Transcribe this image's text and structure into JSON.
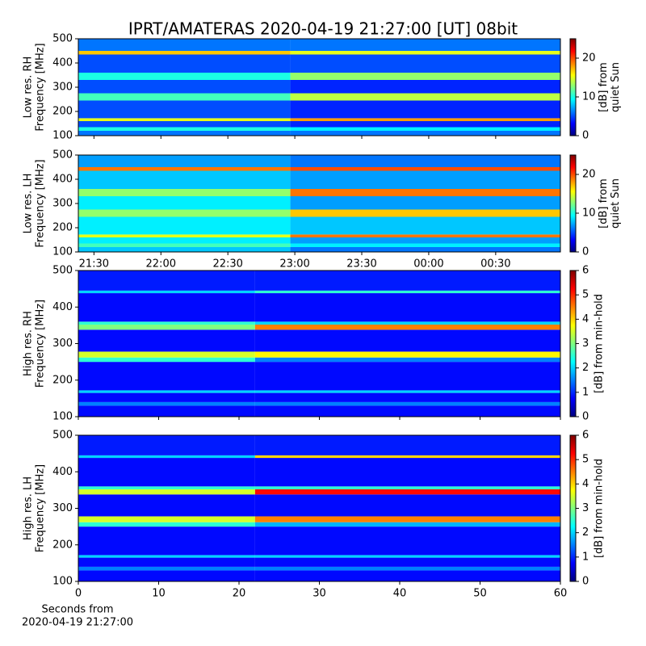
{
  "title": "IPRT/AMATERAS 2020-04-19 21:27:00 [UT]   08bit",
  "chart_data": [
    {
      "type": "heatmap",
      "ylabel": [
        "Low res. RH",
        "Frequency [MHz]"
      ],
      "colorbar_label": [
        "[dB] from",
        "quiet Sun"
      ],
      "xlim": [
        23,
        239
      ],
      "xticks": [
        {
          "value": 30,
          "label": "21:30"
        },
        {
          "value": 60,
          "label": "22:00"
        },
        {
          "value": 90,
          "label": "22:30"
        },
        {
          "value": 120,
          "label": "23:00"
        },
        {
          "value": 150,
          "label": "23:30"
        },
        {
          "value": 180,
          "label": "00:00"
        },
        {
          "value": 210,
          "label": "00:30"
        }
      ],
      "tick_labels": false,
      "ylim": [
        100,
        500
      ],
      "yticks": [
        100,
        200,
        300,
        400,
        500
      ],
      "clim": [
        0,
        25
      ],
      "cticks": [
        0,
        10,
        20
      ],
      "colormap": "jet",
      "x_edges": [
        23,
        118,
        239
      ],
      "y_edges": [
        100,
        120,
        135,
        160,
        172,
        245,
        275,
        330,
        360,
        435,
        450,
        500
      ],
      "z": [
        [
          6,
          6
        ],
        [
          10,
          9
        ],
        [
          5,
          4
        ],
        [
          15,
          18
        ],
        [
          5,
          4
        ],
        [
          11,
          14
        ],
        [
          5,
          4
        ],
        [
          10,
          13
        ],
        [
          5,
          5
        ],
        [
          17,
          15
        ],
        [
          6,
          6
        ]
      ]
    },
    {
      "type": "heatmap",
      "ylabel": [
        "Low res. LH",
        "Frequency [MHz]"
      ],
      "colorbar_label": [
        "[dB] from",
        "quiet Sun"
      ],
      "xlim": [
        23,
        239
      ],
      "xticks": [
        {
          "value": 30,
          "label": "21:30"
        },
        {
          "value": 60,
          "label": "22:00"
        },
        {
          "value": 90,
          "label": "22:30"
        },
        {
          "value": 120,
          "label": "23:00"
        },
        {
          "value": 150,
          "label": "23:30"
        },
        {
          "value": 180,
          "label": "00:00"
        },
        {
          "value": 210,
          "label": "00:30"
        }
      ],
      "tick_labels": true,
      "ylim": [
        100,
        500
      ],
      "yticks": [
        100,
        200,
        300,
        400,
        500
      ],
      "clim": [
        0,
        25
      ],
      "cticks": [
        0,
        10,
        20
      ],
      "colormap": "jet",
      "x_edges": [
        23,
        118,
        239
      ],
      "y_edges": [
        100,
        120,
        135,
        160,
        172,
        245,
        275,
        330,
        360,
        435,
        450,
        500
      ],
      "z": [
        [
          8,
          6
        ],
        [
          11,
          9
        ],
        [
          9,
          7
        ],
        [
          15,
          19
        ],
        [
          9,
          8
        ],
        [
          13,
          17
        ],
        [
          9,
          7
        ],
        [
          13,
          19
        ],
        [
          8,
          7
        ],
        [
          19,
          20
        ],
        [
          7,
          6
        ]
      ]
    },
    {
      "type": "heatmap",
      "ylabel": [
        "High res. RH",
        "Frequency [MHz]"
      ],
      "colorbar_label": [
        "[dB] from min-hold"
      ],
      "xlim": [
        0,
        60
      ],
      "xticks": [
        0,
        10,
        20,
        30,
        40,
        50,
        60
      ],
      "tick_labels": false,
      "ylim": [
        100,
        500
      ],
      "yticks": [
        100,
        200,
        300,
        400,
        500
      ],
      "clim": [
        0,
        6
      ],
      "cticks": [
        0,
        1,
        2,
        3,
        4,
        5,
        6
      ],
      "colormap": "jet",
      "x_edges": [
        0,
        22,
        60
      ],
      "y_edges": [
        100,
        130,
        140,
        165,
        172,
        250,
        262,
        278,
        338,
        352,
        360,
        438,
        445,
        500
      ],
      "z": [
        [
          0.8,
          0.8
        ],
        [
          1.5,
          1.5
        ],
        [
          0.8,
          0.8
        ],
        [
          2,
          2
        ],
        [
          0.8,
          0.8
        ],
        [
          2.5,
          1.5
        ],
        [
          3.5,
          3.8
        ],
        [
          0.8,
          0.8
        ],
        [
          3,
          4.5
        ],
        [
          2.5,
          2
        ],
        [
          0.8,
          0.8
        ],
        [
          2,
          2.5
        ],
        [
          0.9,
          0.9
        ]
      ]
    },
    {
      "type": "heatmap",
      "ylabel": [
        "High res. LH",
        "Frequency [MHz]"
      ],
      "colorbar_label": [
        "[dB] from min-hold"
      ],
      "xlim": [
        0,
        60
      ],
      "xticks": [
        0,
        10,
        20,
        30,
        40,
        50,
        60
      ],
      "tick_labels": true,
      "xlabel": [
        "Seconds from",
        "2020-04-19 21:27:00"
      ],
      "ylim": [
        100,
        500
      ],
      "yticks": [
        100,
        200,
        300,
        400,
        500
      ],
      "clim": [
        0,
        6
      ],
      "cticks": [
        0,
        1,
        2,
        3,
        4,
        5,
        6
      ],
      "colormap": "jet",
      "x_edges": [
        0,
        22,
        60
      ],
      "y_edges": [
        100,
        130,
        140,
        165,
        172,
        250,
        262,
        278,
        338,
        352,
        360,
        438,
        445,
        500
      ],
      "z": [
        [
          0.8,
          0.8
        ],
        [
          1.5,
          1.5
        ],
        [
          0.8,
          0.8
        ],
        [
          2,
          2
        ],
        [
          0.8,
          0.8
        ],
        [
          2.5,
          1.8
        ],
        [
          3.5,
          4.5
        ],
        [
          0.8,
          0.8
        ],
        [
          3.5,
          5.2
        ],
        [
          2.5,
          2.5
        ],
        [
          0.8,
          0.8
        ],
        [
          2,
          4
        ],
        [
          0.9,
          0.9
        ]
      ]
    }
  ]
}
